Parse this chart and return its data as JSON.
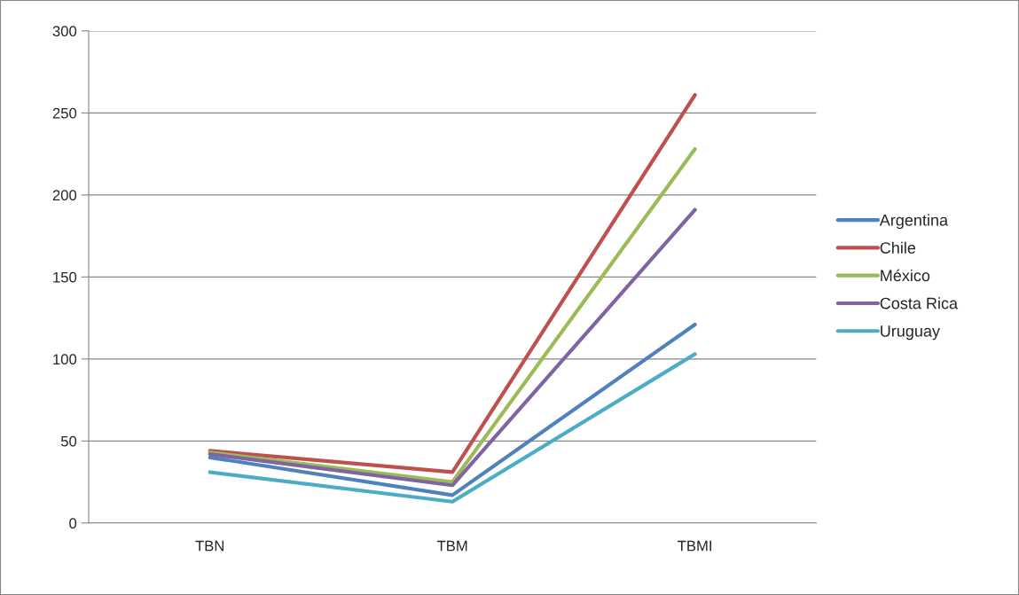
{
  "chart_data": {
    "type": "line",
    "categories": [
      "TBN",
      "TBM",
      "TBMI"
    ],
    "series": [
      {
        "name": "Argentina",
        "color": "#4f81bd",
        "values": [
          40,
          17,
          121
        ]
      },
      {
        "name": "Chile",
        "color": "#c0504d",
        "values": [
          44,
          31,
          261
        ]
      },
      {
        "name": "México",
        "color": "#9bbb59",
        "values": [
          43,
          25,
          228
        ]
      },
      {
        "name": "Costa Rica",
        "color": "#8064a2",
        "values": [
          42,
          23,
          191
        ]
      },
      {
        "name": "Uruguay",
        "color": "#4bacc6",
        "values": [
          31,
          13,
          103
        ]
      }
    ],
    "ylim": [
      0,
      300
    ],
    "yticks": [
      0,
      50,
      100,
      150,
      200,
      250,
      300
    ],
    "grid": "y",
    "legend": "right",
    "marker": "none",
    "line_style": "solid"
  }
}
